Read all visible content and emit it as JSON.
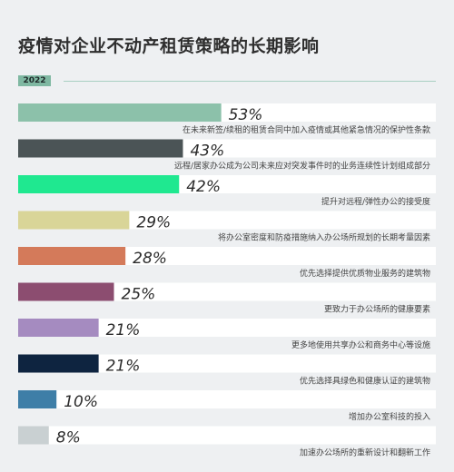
{
  "title": "疫情对企业不动产租赁策略的长期影响",
  "year_label": "2022",
  "chart_data": {
    "type": "bar",
    "orientation": "horizontal",
    "value_suffix": "%",
    "xlim": [
      0,
      100
    ],
    "track_color": "#ffffff",
    "categories": [
      "在未来新签/续租的租赁合同中加入疫情或其他紧急情况的保护性条款",
      "远程/居家办公成为公司未来应对突发事件时的业务连续性计划组成部分",
      "提升对远程/弹性办公的接受度",
      "将办公室密度和防疫措施纳入办公场所规划的长期考量因素",
      "优先选择提供优质物业服务的建筑物",
      "更致力于办公场所的健康要素",
      "更多地使用共享办公和商务中心等设施",
      "优先选择具绿色和健康认证的建筑物",
      "增加办公室科技的投入",
      "加速办公场所的重新设计和翻新工作"
    ],
    "values": [
      53,
      43,
      42,
      29,
      28,
      25,
      21,
      21,
      10,
      8
    ],
    "colors": [
      "#8cc1aa",
      "#4b5456",
      "#1fe890",
      "#d9d598",
      "#d47a5a",
      "#8c4d70",
      "#a58bc0",
      "#0e2440",
      "#3e7ea7",
      "#c9d0d2"
    ]
  }
}
